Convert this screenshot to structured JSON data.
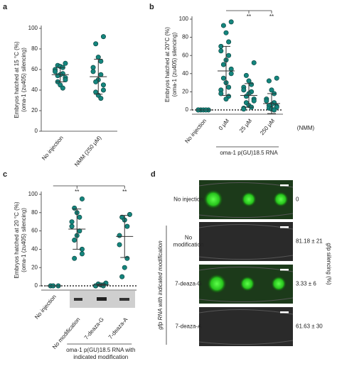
{
  "chart_data": [
    {
      "type": "dot",
      "label": "a",
      "ylabel": [
        "Embryos hatched at 15 °C (%)",
        "(oma-1 (zu405) silencing)"
      ],
      "categories": [
        "No injection",
        "NMM (250 μM)"
      ],
      "series": [
        {
          "name": "Embryos hatched",
          "color": "#14857d",
          "values": [
            [
              66,
              64,
              63,
              62,
              60,
              58,
              56,
              55,
              54,
              52,
              50,
              48,
              45,
              42
            ],
            [
              92,
              85,
              72,
              68,
              62,
              58,
              55,
              50,
              48,
              45,
              40,
              38,
              35,
              32
            ]
          ],
          "means": [
            55,
            53
          ],
          "sd": [
            7,
            17
          ]
        }
      ],
      "ylim": [
        0,
        100
      ],
      "yticks": [
        0,
        20,
        40,
        60,
        80,
        100
      ]
    },
    {
      "type": "dot",
      "label": "b",
      "ylabel": [
        "Embryos hatched at 20°C (%)",
        "(oma-1 (zu405) silencing)"
      ],
      "categories": [
        "No injection",
        "0 μM",
        "25 μM",
        "250 μM"
      ],
      "axis_note": "(NMM)",
      "group_label": [
        "oma-1 p(GU)18.5 RNA"
      ],
      "significance": [
        "**",
        "**"
      ],
      "series": [
        {
          "name": "Embryos hatched",
          "color": "#14857d",
          "values": [
            [
              0,
              0,
              0,
              0,
              0,
              0
            ],
            [
              97,
              93,
              85,
              75,
              70,
              65,
              60,
              55,
              50,
              45,
              40,
              35,
              30,
              25,
              22,
              18,
              15,
              12
            ],
            [
              52,
              38,
              32,
              28,
              25,
              22,
              20,
              18,
              15,
              12,
              10,
              8,
              5,
              3,
              2,
              1
            ],
            [
              35,
              32,
              22,
              18,
              12,
              10,
              8,
              6,
              5,
              4,
              3,
              2,
              1,
              0
            ]
          ],
          "means": [
            0,
            43,
            16,
            7
          ],
          "sd": [
            0,
            27,
            13,
            11
          ]
        }
      ],
      "ylim": [
        0,
        100
      ],
      "yticks": [
        0,
        20,
        40,
        60,
        80,
        100
      ],
      "zero_line": true
    },
    {
      "type": "dot",
      "label": "c",
      "ylabel": [
        "Embryos hatched at 20 °C (%)",
        "(oma-1 (zu405) silencing)"
      ],
      "categories": [
        "No injection",
        "No modification",
        "7-deaza-G",
        "7-deaza-A"
      ],
      "group_label": [
        "oma-1 p(GU)18.5 RNA with",
        "indicated modification"
      ],
      "significance": [
        "**",
        "**"
      ],
      "series": [
        {
          "name": "Embryos hatched",
          "color": "#14857d",
          "values": [
            [
              0,
              0,
              0
            ],
            [
              95,
              85,
              80,
              75,
              70,
              65,
              60,
              55,
              50,
              40,
              35,
              30
            ],
            [
              3,
              2,
              1,
              1,
              0,
              0,
              0
            ],
            [
              78,
              75,
              72,
              65,
              55,
              45,
              30,
              20,
              10
            ]
          ],
          "means": [
            0,
            62,
            1,
            54
          ],
          "sd": [
            0,
            22,
            1,
            23
          ]
        }
      ],
      "ylim": [
        0,
        100
      ],
      "yticks": [
        0,
        20,
        40,
        60,
        80,
        100
      ],
      "zero_line": true
    }
  ],
  "panel_d": {
    "label": "d",
    "side_label": "gfp RNA with indicated modification",
    "value_title": "gfp silencing (%)",
    "rows": [
      {
        "label": [
          "No injection"
        ],
        "value": "0"
      },
      {
        "label": [
          "No",
          "modification"
        ],
        "value": "81.18 ± 21"
      },
      {
        "label": [
          "7-deaza-G"
        ],
        "value": "3.33 ± 6"
      },
      {
        "label": [
          "7-deaza-A"
        ],
        "value": "61.63 ± 30"
      }
    ]
  }
}
